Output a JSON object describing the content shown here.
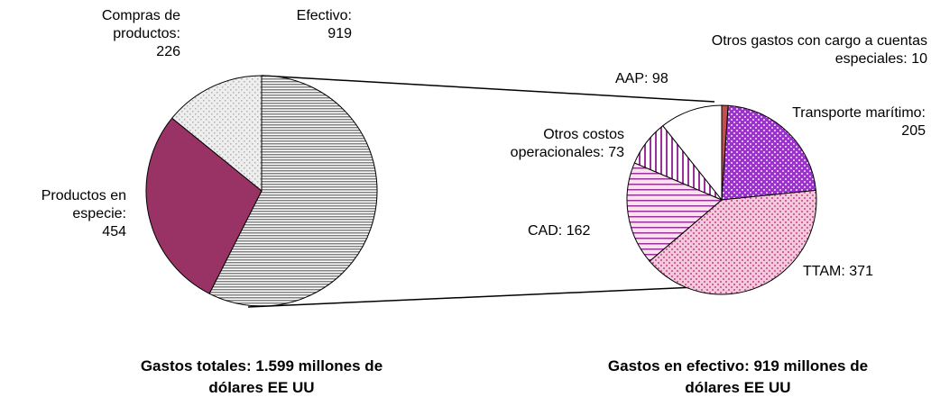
{
  "chart_data": [
    {
      "type": "pie",
      "title": "Gastos totales: 1.599 millones de dólares EE UU",
      "categories": [
        "Efectivo:",
        "Productos en especie:",
        "Compras de productos:"
      ],
      "values": [
        919,
        454,
        226
      ],
      "colors": [
        "#808080",
        "#993366",
        "#b0b0b0"
      ]
    },
    {
      "type": "pie",
      "title": "Gastos en efectivo: 919 millones de dólares EE UU",
      "categories": [
        "Otros gastos con cargo a cuentas especiales:",
        "Transporte marítimo:",
        "TTAM:",
        "CAD:",
        "Otros costos operacionales:",
        "AAP:"
      ],
      "values": [
        10,
        205,
        371,
        162,
        73,
        98
      ],
      "colors": [
        "#c0504d",
        "#9933cc",
        "#cc6699",
        "#993399",
        "#993399",
        "#ffffff"
      ]
    }
  ]
}
